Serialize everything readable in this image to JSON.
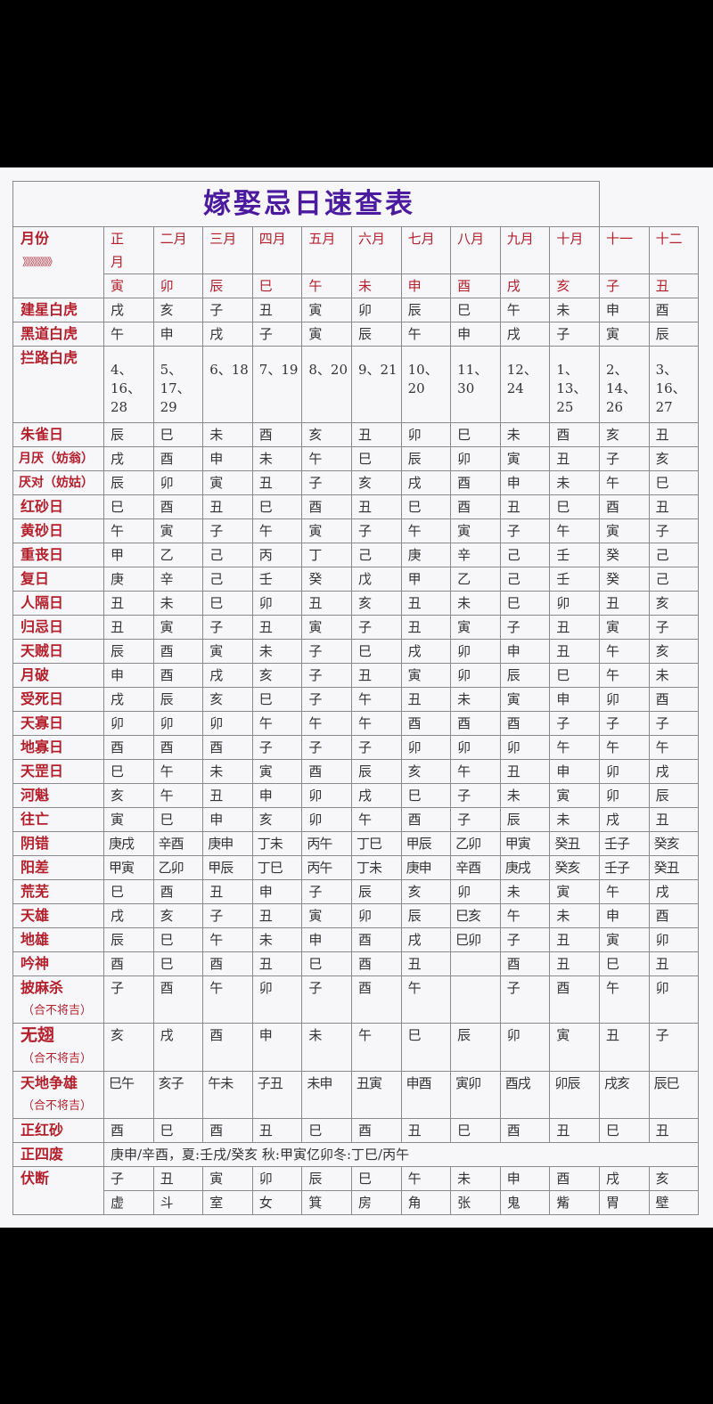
{
  "title": "嫁娶忌日速查表",
  "header": {
    "label": "月份",
    "arrows": "》》》》》》》》",
    "months": [
      "正\n月",
      "二月",
      "三月",
      "四月",
      "五月",
      "六月",
      "七月",
      "八月",
      "九月",
      "十月",
      "十一",
      "十二"
    ],
    "branches": [
      "寅",
      "卯",
      "辰",
      "巳",
      "午",
      "未",
      "申",
      "酉",
      "戌",
      "亥",
      "子",
      "丑"
    ]
  },
  "rows": [
    {
      "label": "建星白虎",
      "values": [
        "戌",
        "亥",
        "子",
        "丑",
        "寅",
        "卯",
        "辰",
        "巳",
        "午",
        "未",
        "申",
        "酉"
      ]
    },
    {
      "label": "黑道白虎",
      "values": [
        "午",
        "申",
        "戌",
        "子",
        "寅",
        "辰",
        "午",
        "申",
        "戌",
        "子",
        "寅",
        "辰"
      ]
    },
    {
      "label": "拦路白虎",
      "values": [
        "4、\n16、\n28",
        "5、\n17、\n29",
        "6、18",
        "7、19",
        "8、20",
        "9、21",
        "10、\n20",
        "11、\n30",
        "12、\n24",
        "1、\n13、\n25",
        "2、\n14、\n26",
        "3、\n16、\n27"
      ]
    },
    {
      "label": "朱雀日",
      "values": [
        "辰",
        "巳",
        "未",
        "酉",
        "亥",
        "丑",
        "卯",
        "巳",
        "未",
        "酉",
        "亥",
        "丑"
      ]
    },
    {
      "label": "月厌（妨翁）",
      "values": [
        "戌",
        "酉",
        "申",
        "未",
        "午",
        "巳",
        "辰",
        "卯",
        "寅",
        "丑",
        "子",
        "亥"
      ]
    },
    {
      "label": "厌对（妨姑）",
      "values": [
        "辰",
        "卯",
        "寅",
        "丑",
        "子",
        "亥",
        "戌",
        "酉",
        "申",
        "未",
        "午",
        "巳"
      ]
    },
    {
      "label": "红砂日",
      "values": [
        "巳",
        "酉",
        "丑",
        "巳",
        "酉",
        "丑",
        "巳",
        "酉",
        "丑",
        "巳",
        "酉",
        "丑"
      ]
    },
    {
      "label": "黄砂日",
      "values": [
        "午",
        "寅",
        "子",
        "午",
        "寅",
        "子",
        "午",
        "寅",
        "子",
        "午",
        "寅",
        "子"
      ]
    },
    {
      "label": "重丧日",
      "values": [
        "甲",
        "乙",
        "己",
        "丙",
        "丁",
        "己",
        "庚",
        "辛",
        "己",
        "壬",
        "癸",
        "己"
      ]
    },
    {
      "label": "复日",
      "values": [
        "庚",
        "辛",
        "己",
        "壬",
        "癸",
        "戊",
        "甲",
        "乙",
        "己",
        "壬",
        "癸",
        "己"
      ]
    },
    {
      "label": "人隔日",
      "values": [
        "丑",
        "未",
        "巳",
        "卯",
        "丑",
        "亥",
        "丑",
        "未",
        "巳",
        "卯",
        "丑",
        "亥"
      ]
    },
    {
      "label": "归忌日",
      "values": [
        "丑",
        "寅",
        "子",
        "丑",
        "寅",
        "子",
        "丑",
        "寅",
        "子",
        "丑",
        "寅",
        "子"
      ]
    },
    {
      "label": "天贼日",
      "values": [
        "辰",
        "酉",
        "寅",
        "未",
        "子",
        "巳",
        "戌",
        "卯",
        "申",
        "丑",
        "午",
        "亥"
      ]
    },
    {
      "label": "月破",
      "values": [
        "申",
        "酉",
        "戌",
        "亥",
        "子",
        "丑",
        "寅",
        "卯",
        "辰",
        "巳",
        "午",
        "未"
      ]
    },
    {
      "label": "受死日",
      "values": [
        "戌",
        "辰",
        "亥",
        "巳",
        "子",
        "午",
        "丑",
        "未",
        "寅",
        "申",
        "卯",
        "酉"
      ]
    },
    {
      "label": "天寡日",
      "values": [
        "卯",
        "卯",
        "卯",
        "午",
        "午",
        "午",
        "酉",
        "酉",
        "酉",
        "子",
        "子",
        "子"
      ]
    },
    {
      "label": "地寡日",
      "values": [
        "酉",
        "酉",
        "酉",
        "子",
        "子",
        "子",
        "卯",
        "卯",
        "卯",
        "午",
        "午",
        "午"
      ]
    },
    {
      "label": "天罡日",
      "values": [
        "巳",
        "午",
        "未",
        "寅",
        "酉",
        "辰",
        "亥",
        "午",
        "丑",
        "申",
        "卯",
        "戌"
      ]
    },
    {
      "label": "河魁",
      "values": [
        "亥",
        "午",
        "丑",
        "申",
        "卯",
        "戌",
        "巳",
        "子",
        "未",
        "寅",
        "卯",
        "辰"
      ]
    },
    {
      "label": "往亡",
      "values": [
        "寅",
        "巳",
        "申",
        "亥",
        "卯",
        "午",
        "酉",
        "子",
        "辰",
        "未",
        "戌",
        "丑"
      ]
    },
    {
      "label": "阴错",
      "values": [
        "庚戌",
        "辛酉",
        "庚申",
        "丁未",
        "丙午",
        "丁巳",
        "甲辰",
        "乙卯",
        "甲寅",
        "癸丑",
        "壬子",
        "癸亥"
      ]
    },
    {
      "label": "阳差",
      "values": [
        "甲寅",
        "乙卯",
        "甲辰",
        "丁巳",
        "丙午",
        "丁未",
        "庚申",
        "辛酉",
        "庚戌",
        "癸亥",
        "壬子",
        "癸丑"
      ]
    },
    {
      "label": "荒芜",
      "values": [
        "巳",
        "酉",
        "丑",
        "申",
        "子",
        "辰",
        "亥",
        "卯",
        "未",
        "寅",
        "午",
        "戌"
      ]
    },
    {
      "label": "天雄",
      "values": [
        "戌",
        "亥",
        "子",
        "丑",
        "寅",
        "卯",
        "辰",
        "巳亥",
        "午",
        "未",
        "申",
        "酉"
      ]
    },
    {
      "label": "地雄",
      "values": [
        "辰",
        "巳",
        "午",
        "未",
        "申",
        "酉",
        "戌",
        "巳卯",
        "子",
        "丑",
        "寅",
        "卯"
      ]
    },
    {
      "label": "吟神",
      "values": [
        "酉",
        "巳",
        "酉",
        "丑",
        "巳",
        "酉",
        "丑",
        "",
        "酉",
        "丑",
        "巳",
        "丑"
      ]
    },
    {
      "label": "披麻杀",
      "sub": "（合不将吉）",
      "values": [
        "子",
        "酉",
        "午",
        "卯",
        "子",
        "酉",
        "午",
        "",
        "子",
        "酉",
        "午",
        "卯"
      ]
    },
    {
      "label": "无翅",
      "sub": "（合不将吉）",
      "big": true,
      "values": [
        "亥",
        "戌",
        "酉",
        "申",
        "未",
        "午",
        "巳",
        "辰",
        "卯",
        "寅",
        "丑",
        "子"
      ]
    },
    {
      "label": "天地争雄",
      "sub": "（合不将吉）",
      "values": [
        "巳午",
        "亥子",
        "午未",
        "子丑",
        "未申",
        "丑寅",
        "申酉",
        "寅卯",
        "酉戌",
        "卯辰",
        "戌亥",
        "辰巳"
      ]
    },
    {
      "label": "正红砂",
      "values": [
        "酉",
        "巳",
        "酉",
        "丑",
        "巳",
        "酉",
        "丑",
        "巳",
        "酉",
        "丑",
        "巳",
        "丑"
      ]
    }
  ],
  "zhengsifei": {
    "label": "正四废",
    "text": "庚申/辛酉，夏:壬戌/癸亥 秋:甲寅亿卯冬:丁巳/丙午"
  },
  "fuduan": {
    "label": "伏断",
    "branches": [
      "子",
      "丑",
      "寅",
      "卯",
      "辰",
      "巳",
      "午",
      "未",
      "申",
      "酉",
      "戌",
      "亥"
    ],
    "mansions": [
      "虚",
      "斗",
      "室",
      "女",
      "箕",
      "房",
      "角",
      "张",
      "鬼",
      "觜",
      "胃",
      "壁"
    ]
  }
}
